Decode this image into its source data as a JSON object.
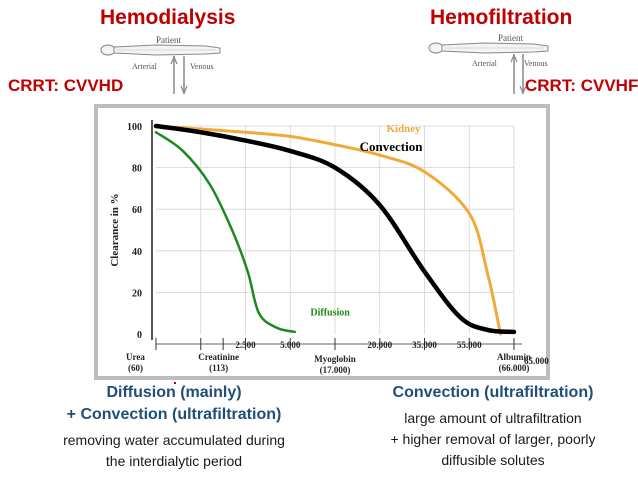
{
  "header": {
    "left_title": "Hemodialysis",
    "right_title": "Hemofiltration",
    "left_mode": "CRRT: CVVHD",
    "right_mode": "CRRT: CVVHF"
  },
  "diagram": {
    "patient_label": "Patient",
    "arterial_label": "Arterial",
    "venous_label": "Venous"
  },
  "chart_data": {
    "type": "line",
    "ylabel": "Clearance in %",
    "xlabel": "",
    "ylim": [
      0,
      100
    ],
    "yticks": [
      "0",
      "20",
      "40",
      "60",
      "80",
      "100"
    ],
    "grid": true,
    "x_ticks_upper": [
      "2.500",
      "5.000",
      "20.000",
      "35.000",
      "55.000",
      "65.000"
    ],
    "x_ticks_lower": [
      {
        "name": "Urea",
        "mw": "(60)"
      },
      {
        "name": "Creatinine",
        "mw": "(113)"
      },
      {
        "name": "Myoglobin",
        "mw": "(17.000)"
      },
      {
        "name": "Albumin",
        "mw": "(66.000)"
      }
    ],
    "x_positions": [
      "Urea",
      "Creatinine",
      "2.500",
      "5.000",
      "Myoglobin",
      "20.000",
      "35.000",
      "55.000",
      "Albumin"
    ],
    "series": [
      {
        "name": "Kidney",
        "color": "#f2a93b",
        "points": [
          [
            0,
            100
          ],
          [
            2,
            97
          ],
          [
            3,
            95
          ],
          [
            4,
            91
          ],
          [
            5,
            86
          ],
          [
            6,
            78
          ],
          [
            7,
            58
          ],
          [
            7.4,
            30
          ],
          [
            7.7,
            0
          ]
        ]
      },
      {
        "name": "Convection",
        "color": "#000000",
        "points": [
          [
            0,
            100
          ],
          [
            1,
            97
          ],
          [
            2,
            93
          ],
          [
            3,
            88
          ],
          [
            4,
            80
          ],
          [
            5,
            62
          ],
          [
            6,
            30
          ],
          [
            6.8,
            8
          ],
          [
            7.4,
            2
          ],
          [
            8,
            1
          ]
        ]
      },
      {
        "name": "Diffusion",
        "color": "#1e8a1e",
        "points": [
          [
            0,
            97
          ],
          [
            0.6,
            88
          ],
          [
            1.2,
            72
          ],
          [
            1.7,
            50
          ],
          [
            2.05,
            30
          ],
          [
            2.3,
            10
          ],
          [
            2.7,
            3
          ],
          [
            3.1,
            1
          ]
        ]
      }
    ]
  },
  "captions": {
    "left": {
      "head1": "Diffusion (mainly)",
      "head2": "+ Convection (ultrafiltration)",
      "body1": "removing water accumulated during",
      "body2": "the interdialytic period"
    },
    "right": {
      "head1": "Convection (ultrafiltration)",
      "body1": "large amount of ultrafiltration",
      "body2": "+ higher removal of larger, poorly",
      "body3": "diffusible solutes"
    }
  }
}
